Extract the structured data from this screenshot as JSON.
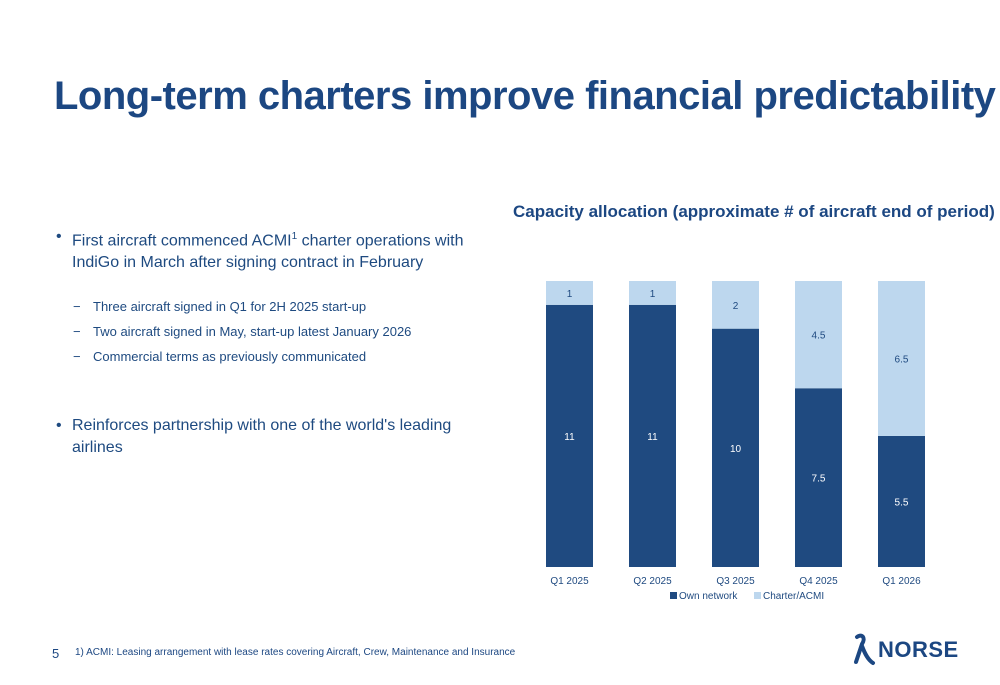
{
  "page": {
    "title": "Long-term charters improve financial predictability",
    "page_number": "5",
    "footnote": "1) ACMI: Leasing arrangement with lease rates covering Aircraft, Crew, Maintenance and Insurance",
    "logo_text": "NORSE"
  },
  "bullets": {
    "b1_pre": "First aircraft commenced ACMI",
    "b1_sup": "1",
    "b1_post": " charter operations with IndiGo in March after signing contract in February",
    "subs": [
      "Three aircraft signed in Q1 for 2H 2025 start-up",
      "Two aircraft signed in May, start-up latest January 2026",
      "Commercial terms as previously communicated"
    ],
    "b2": "Reinforces partnership with one of the world's leading airlines"
  },
  "colors": {
    "own_network": "#1f4a80",
    "charter": "#bdd7ee",
    "title": "#1c4782"
  },
  "chart_data": {
    "type": "bar",
    "stacked": true,
    "title": "Capacity allocation (approximate # of aircraft end of period)",
    "categories": [
      "Q1 2025",
      "Q2 2025",
      "Q3 2025",
      "Q4 2025",
      "Q1 2026"
    ],
    "series": [
      {
        "name": "Own network",
        "values": [
          11,
          11,
          10,
          7.5,
          5.5
        ]
      },
      {
        "name": "Charter/ACMI",
        "values": [
          1,
          1,
          2,
          4.5,
          6.5
        ]
      }
    ],
    "data_labels": [
      [
        "11",
        "11",
        "10",
        "7.5",
        "5.5"
      ],
      [
        "1",
        "1",
        "2",
        "4.5",
        "6.5"
      ]
    ],
    "legend_position": "bottom",
    "grid": false,
    "ylim": [
      0,
      12
    ]
  }
}
